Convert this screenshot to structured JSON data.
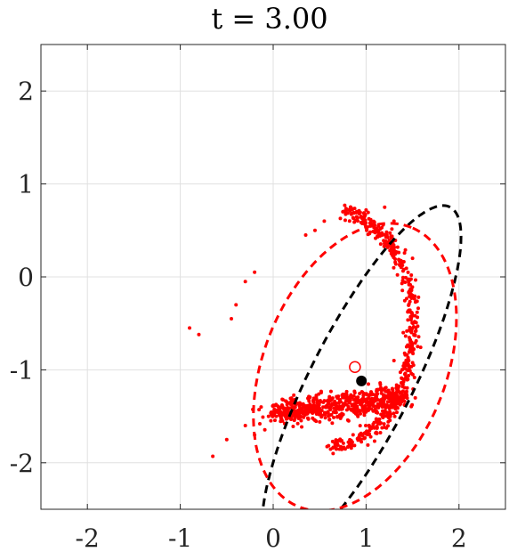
{
  "chart_data": {
    "type": "scatter",
    "title": "t = 3.00",
    "xlabel": "",
    "ylabel": "",
    "xlim": [
      -2.5,
      2.5
    ],
    "ylim": [
      -2.5,
      2.5
    ],
    "x_ticks": [
      -2,
      -1,
      0,
      1,
      2
    ],
    "x_tick_labels": [
      "-2",
      "-1",
      "0",
      "1",
      "2"
    ],
    "y_ticks": [
      -2,
      -1,
      0,
      1,
      2
    ],
    "y_tick_labels": [
      "-2",
      "-1",
      "0",
      "1",
      "2"
    ],
    "grid": true,
    "colors": {
      "particles": "#ff0000",
      "estimate_ellipse": "#ff0000",
      "true_ellipse": "#000000",
      "grid": "#e0e0e0",
      "axes": "#262626"
    },
    "series": [
      {
        "kind": "particle-cloud",
        "color": "#ff0000",
        "points": [
          [
            1.0,
            -1.35
          ],
          [
            0.6,
            -1.4
          ],
          [
            0.8,
            -1.3
          ],
          [
            1.2,
            -1.2
          ],
          [
            0.4,
            -1.45
          ],
          [
            0.2,
            -1.5
          ],
          [
            0.1,
            -1.55
          ],
          [
            1.3,
            -0.9
          ],
          [
            1.4,
            -0.6
          ],
          [
            1.5,
            -0.2
          ],
          [
            1.5,
            0.2
          ],
          [
            1.3,
            0.6
          ],
          [
            1.0,
            0.72
          ],
          [
            0.9,
            0.7
          ],
          [
            1.2,
            0.75
          ],
          [
            -0.3,
            -0.05
          ],
          [
            -0.2,
            0.05
          ],
          [
            -0.45,
            -0.45
          ],
          [
            -0.4,
            -0.3
          ],
          [
            -0.9,
            -0.55
          ],
          [
            -0.8,
            -0.62
          ],
          [
            -0.65,
            -1.93
          ],
          [
            -0.5,
            -1.75
          ],
          [
            -0.3,
            -1.6
          ],
          [
            -0.2,
            -1.7
          ],
          [
            -0.05,
            -1.5
          ],
          [
            0.05,
            -1.45
          ],
          [
            0.45,
            0.5
          ],
          [
            0.35,
            0.45
          ],
          [
            0.55,
            0.6
          ],
          [
            0.75,
            0.7
          ]
        ]
      },
      {
        "kind": "ellipse",
        "name_hidden": true,
        "style": "dashed",
        "color": "#000000",
        "center": [
          0.95,
          -1.12
        ],
        "semi_axes": [
          2.1,
          0.55
        ],
        "angle_deg": 63
      },
      {
        "kind": "ellipse",
        "style": "dashed",
        "color": "#ff0000",
        "center": [
          0.88,
          -0.97
        ],
        "semi_axes": [
          1.62,
          0.98
        ],
        "angle_deg": 68
      },
      {
        "kind": "marker",
        "style": "filled",
        "color": "#000000",
        "x": 0.95,
        "y": -1.12
      },
      {
        "kind": "marker",
        "style": "open",
        "color": "#ff0000",
        "x": 0.88,
        "y": -0.97
      }
    ]
  }
}
